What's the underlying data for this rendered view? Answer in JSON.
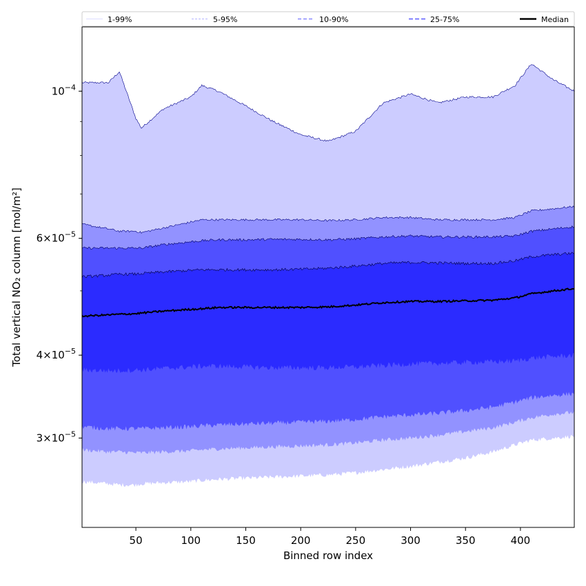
{
  "chart_data": {
    "type": "area",
    "title": "",
    "xlabel": "Binned row index",
    "ylabel": "Total vertical NO₂ column [mol/m²]",
    "y_scale": "log",
    "xlim": [
      1,
      449
    ],
    "ylim": [
      2.2e-05,
      0.000125
    ],
    "grid": false,
    "legend_position": "top",
    "x_ticks": [
      50,
      100,
      150,
      200,
      250,
      300,
      350,
      400
    ],
    "x_tick_labels": [
      "50",
      "100",
      "150",
      "200",
      "250",
      "300",
      "350",
      "400"
    ],
    "y_ticks": [
      {
        "value": 3e-05,
        "mant": "3×10",
        "exp": "−5"
      },
      {
        "value": 4e-05,
        "mant": "4×10",
        "exp": "−5"
      },
      {
        "value": 6e-05,
        "mant": "6×10",
        "exp": "−5"
      },
      {
        "value": 0.0001,
        "mant": "10",
        "exp": "−4"
      }
    ],
    "x": [
      1,
      25,
      35,
      50,
      55,
      75,
      100,
      110,
      125,
      150,
      175,
      200,
      225,
      250,
      275,
      300,
      325,
      350,
      375,
      395,
      410,
      430,
      449
    ],
    "bands": [
      {
        "name": "1-99%",
        "color": "#ccccff",
        "line_color": "#00008b",
        "lower": [
          2.58e-05,
          2.56e-05,
          2.55e-05,
          2.55e-05,
          2.56e-05,
          2.57e-05,
          2.58e-05,
          2.59e-05,
          2.6e-05,
          2.61e-05,
          2.62e-05,
          2.63e-05,
          2.64e-05,
          2.66e-05,
          2.69e-05,
          2.72e-05,
          2.76e-05,
          2.8e-05,
          2.86e-05,
          2.93e-05,
          2.98e-05,
          3e-05,
          3.02e-05
        ],
        "upper": [
          0.000103,
          0.000103,
          0.000107,
          9.1e-05,
          8.8e-05,
          9.4e-05,
          9.8e-05,
          0.000102,
          0.0001,
          9.5e-05,
          9e-05,
          8.6e-05,
          8.4e-05,
          8.7e-05,
          9.6e-05,
          9.9e-05,
          9.6e-05,
          9.8e-05,
          9.8e-05,
          0.000102,
          0.00011,
          0.000104,
          0.0001
        ]
      },
      {
        "name": "5-95%",
        "color": "#9292ff",
        "line_color": "#000080",
        "lower": [
          2.88e-05,
          2.86e-05,
          2.86e-05,
          2.85e-05,
          2.85e-05,
          2.86e-05,
          2.87e-05,
          2.88e-05,
          2.89e-05,
          2.9e-05,
          2.91e-05,
          2.92e-05,
          2.93e-05,
          2.95e-05,
          2.98e-05,
          3e-05,
          3.03e-05,
          3.07e-05,
          3.11e-05,
          3.17e-05,
          3.22e-05,
          3.26e-05,
          3.28e-05
        ],
        "upper": [
          6.3e-05,
          6.2e-05,
          6.15e-05,
          6.15e-05,
          6.12e-05,
          6.22e-05,
          6.35e-05,
          6.4e-05,
          6.4e-05,
          6.4e-05,
          6.4e-05,
          6.4e-05,
          6.38e-05,
          6.4e-05,
          6.45e-05,
          6.45e-05,
          6.4e-05,
          6.4e-05,
          6.4e-05,
          6.45e-05,
          6.6e-05,
          6.65e-05,
          6.7e-05
        ]
      },
      {
        "name": "10-90%",
        "color": "#5050ff",
        "line_color": "#000060",
        "lower": [
          3.12e-05,
          3.1e-05,
          3.1e-05,
          3.1e-05,
          3.1e-05,
          3.11e-05,
          3.12e-05,
          3.13e-05,
          3.14e-05,
          3.15e-05,
          3.16e-05,
          3.17e-05,
          3.18e-05,
          3.2e-05,
          3.23e-05,
          3.25e-05,
          3.27e-05,
          3.3e-05,
          3.34e-05,
          3.4e-05,
          3.45e-05,
          3.48e-05,
          3.5e-05
        ],
        "upper": [
          5.8e-05,
          5.8e-05,
          5.8e-05,
          5.8e-05,
          5.8e-05,
          5.87e-05,
          5.93e-05,
          5.95e-05,
          5.97e-05,
          5.97e-05,
          5.98e-05,
          5.98e-05,
          5.97e-05,
          5.99e-05,
          6.03e-05,
          6.05e-05,
          6.03e-05,
          6.03e-05,
          6.03e-05,
          6.05e-05,
          6.15e-05,
          6.2e-05,
          6.25e-05
        ]
      },
      {
        "name": "25-75%",
        "color": "#2b2bff",
        "line_color": "#00003c",
        "lower": [
          3.8e-05,
          3.79e-05,
          3.79e-05,
          3.8e-05,
          3.8e-05,
          3.82e-05,
          3.84e-05,
          3.85e-05,
          3.85e-05,
          3.84e-05,
          3.83e-05,
          3.83e-05,
          3.83e-05,
          3.84e-05,
          3.86e-05,
          3.88e-05,
          3.89e-05,
          3.9e-05,
          3.91e-05,
          3.92e-05,
          3.96e-05,
          3.98e-05,
          4e-05
        ],
        "upper": [
          5.25e-05,
          5.28e-05,
          5.3e-05,
          5.3e-05,
          5.31e-05,
          5.34e-05,
          5.37e-05,
          5.38e-05,
          5.38e-05,
          5.38e-05,
          5.38e-05,
          5.39e-05,
          5.41e-05,
          5.45e-05,
          5.5e-05,
          5.52e-05,
          5.51e-05,
          5.5e-05,
          5.5e-05,
          5.55e-05,
          5.63e-05,
          5.67e-05,
          5.7e-05
        ]
      }
    ],
    "median": {
      "name": "Median",
      "color": "#000000",
      "values": [
        4.58e-05,
        4.6e-05,
        4.61e-05,
        4.62e-05,
        4.63e-05,
        4.66e-05,
        4.69e-05,
        4.7e-05,
        4.72e-05,
        4.72e-05,
        4.72e-05,
        4.72e-05,
        4.73e-05,
        4.76e-05,
        4.8e-05,
        4.82e-05,
        4.82e-05,
        4.83e-05,
        4.84e-05,
        4.88e-05,
        4.95e-05,
        5e-05,
        5.04e-05
      ]
    },
    "legend": [
      {
        "label": "1-99%",
        "color": "#dcdcff",
        "dash": "none",
        "width": 1
      },
      {
        "label": "5-95%",
        "color": "#b4b4ff",
        "dash": "3,2",
        "width": 1
      },
      {
        "label": "10-90%",
        "color": "#8787ff",
        "dash": "5,3",
        "width": 1.5
      },
      {
        "label": "25-75%",
        "color": "#5a5aff",
        "dash": "6,3",
        "width": 1.5
      },
      {
        "label": "Median",
        "color": "#000000",
        "dash": "none",
        "width": 2.5
      }
    ]
  }
}
